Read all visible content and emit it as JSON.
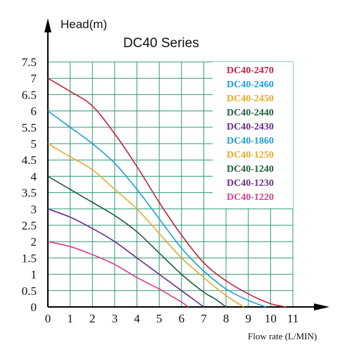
{
  "chart_data": {
    "type": "line",
    "title": "DC40 Series",
    "ylabel": "Head(m)",
    "xlabel": "Flow rate (L/MIN)",
    "xlim": [
      0,
      11
    ],
    "ylim": [
      0,
      7.5
    ],
    "x_ticks": [
      "0",
      "1",
      "2",
      "3",
      "4",
      "5",
      "6",
      "7",
      "8",
      "9",
      "10",
      "11"
    ],
    "y_ticks": [
      "0",
      "0.5",
      "1",
      "1.5",
      "2",
      "2.5",
      "3",
      "3.5",
      "4",
      "4.5",
      "5",
      "5.5",
      "6",
      "6.5",
      "7",
      "7.5"
    ],
    "grid": true,
    "legend_position": "top-right",
    "legend": [
      {
        "name": "DC40-2470",
        "color": "#c0243c"
      },
      {
        "name": "DC40-2460",
        "color": "#1e9ed6"
      },
      {
        "name": "DC40-2450",
        "color": "#e8a92a"
      },
      {
        "name": "DC40-2440",
        "color": "#1f5e3a"
      },
      {
        "name": "DC40-2430",
        "color": "#6a2c8c"
      },
      {
        "name": "DC40-1860",
        "color": "#1e9ed6"
      },
      {
        "name": "DC40-1250",
        "color": "#e8a92a"
      },
      {
        "name": "DC40-1240",
        "color": "#1f5e3a"
      },
      {
        "name": "DC40-1230",
        "color": "#6a2c8c"
      },
      {
        "name": "DC40-1220",
        "color": "#d83c8e"
      }
    ],
    "series": [
      {
        "color": "#c0243c",
        "points": [
          [
            0,
            7
          ],
          [
            1,
            6.6
          ],
          [
            2,
            6.15
          ],
          [
            3,
            5.3
          ],
          [
            4,
            4.3
          ],
          [
            5,
            3.2
          ],
          [
            6,
            2.2
          ],
          [
            7,
            1.35
          ],
          [
            8,
            0.8
          ],
          [
            9,
            0.4
          ],
          [
            10,
            0.1
          ],
          [
            10.7,
            0
          ]
        ]
      },
      {
        "color": "#1e9ed6",
        "points": [
          [
            0,
            6
          ],
          [
            1,
            5.5
          ],
          [
            2,
            5.0
          ],
          [
            3,
            4.4
          ],
          [
            4,
            3.6
          ],
          [
            5,
            2.7
          ],
          [
            6,
            1.8
          ],
          [
            7,
            1.1
          ],
          [
            8,
            0.55
          ],
          [
            9,
            0.2
          ],
          [
            9.8,
            0
          ]
        ]
      },
      {
        "color": "#e8a92a",
        "points": [
          [
            0,
            5
          ],
          [
            1,
            4.6
          ],
          [
            2,
            4.2
          ],
          [
            3,
            3.6
          ],
          [
            4,
            3.0
          ],
          [
            5,
            2.25
          ],
          [
            6,
            1.5
          ],
          [
            7,
            0.9
          ],
          [
            8,
            0.35
          ],
          [
            8.8,
            0
          ]
        ]
      },
      {
        "color": "#1f5e3a",
        "points": [
          [
            0,
            4
          ],
          [
            1,
            3.6
          ],
          [
            2,
            3.2
          ],
          [
            3,
            2.8
          ],
          [
            4,
            2.3
          ],
          [
            5,
            1.65
          ],
          [
            6,
            1.0
          ],
          [
            7,
            0.45
          ],
          [
            7.5,
            0.25
          ],
          [
            8,
            0
          ]
        ]
      },
      {
        "color": "#6a2c8c",
        "points": [
          [
            0,
            3
          ],
          [
            1,
            2.75
          ],
          [
            2,
            2.4
          ],
          [
            3,
            2.0
          ],
          [
            4,
            1.5
          ],
          [
            5,
            1.0
          ],
          [
            6,
            0.5
          ],
          [
            6.5,
            0.25
          ],
          [
            7,
            0
          ]
        ]
      },
      {
        "color": "#d83c8e",
        "points": [
          [
            0,
            2
          ],
          [
            1,
            1.85
          ],
          [
            2,
            1.6
          ],
          [
            3,
            1.3
          ],
          [
            4,
            0.9
          ],
          [
            5,
            0.55
          ],
          [
            5.5,
            0.35
          ],
          [
            6,
            0.15
          ],
          [
            6.3,
            0
          ]
        ]
      }
    ]
  }
}
